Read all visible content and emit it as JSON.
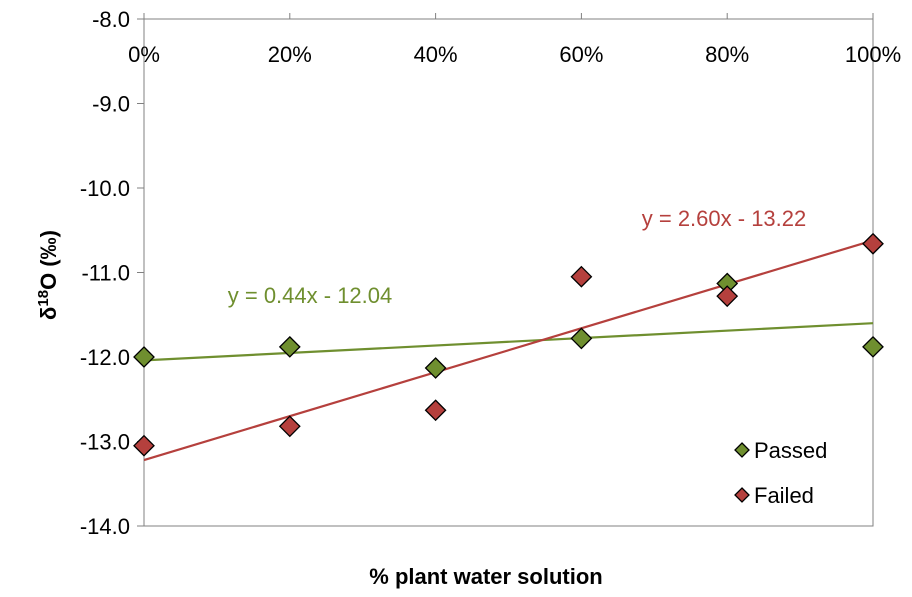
{
  "chart_data": {
    "type": "scatter",
    "xlabel": "% plant water solution",
    "ylabel_prefix": "δ",
    "ylabel_sup": "18",
    "ylabel_suffix": "O (‰)",
    "xlim": [
      0,
      1
    ],
    "ylim": [
      -14,
      -8
    ],
    "x_ticks": [
      0,
      0.2,
      0.4,
      0.6,
      0.8,
      1.0
    ],
    "x_tick_labels": [
      "0%",
      "20%",
      "40%",
      "60%",
      "80%",
      "100%"
    ],
    "x_tick_position": "top",
    "y_ticks": [
      -8,
      -9,
      -10,
      -11,
      -12,
      -13,
      -14
    ],
    "y_tick_labels": [
      "-8.0",
      "-9.0",
      "-10.0",
      "-11.0",
      "-12.0",
      "-13.0",
      "-14.0"
    ],
    "grid": false,
    "legend_position": "bottom-right",
    "series": [
      {
        "name": "Passed",
        "color": "#6f8f2f",
        "marker": "diamond",
        "x": [
          0,
          0.2,
          0.4,
          0.6,
          0.8,
          1.0
        ],
        "y": [
          -12.0,
          -11.88,
          -12.13,
          -11.78,
          -11.13,
          -11.88
        ],
        "trendline": {
          "slope": 0.44,
          "intercept": -12.04,
          "equation": "y = 0.44x - 12.04"
        }
      },
      {
        "name": "Failed",
        "color": "#b5403d",
        "marker": "diamond",
        "x": [
          0,
          0.2,
          0.4,
          0.6,
          0.8,
          1.0
        ],
        "y": [
          -13.05,
          -12.82,
          -12.63,
          -11.05,
          -11.28,
          -10.66
        ],
        "trendline": {
          "slope": 2.6,
          "intercept": -13.22,
          "equation": "y = 2.60x - 13.22"
        }
      }
    ]
  }
}
